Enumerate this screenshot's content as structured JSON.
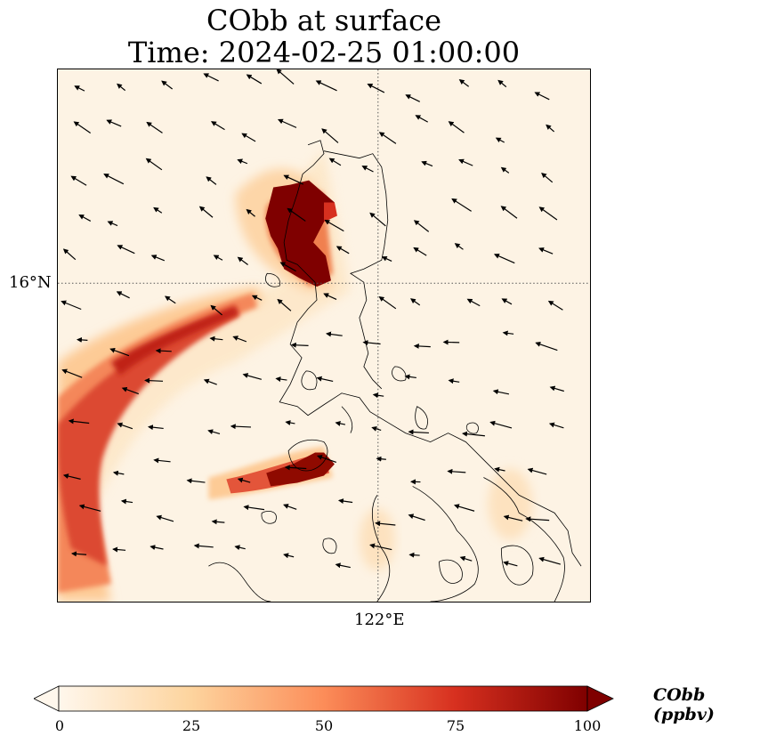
{
  "title_line1": "CObb at surface",
  "title_line2": "Time: 2024-02-25 01:00:00",
  "map": {
    "lat_gridline_label": "16°N",
    "lon_gridline_label": "122°E",
    "background_color": "#fdf3e4",
    "coastline_color": "#000000",
    "gridline_style": "dotted"
  },
  "colorbar": {
    "label": "CObb (ppbv)",
    "ticks": [
      "0",
      "25",
      "50",
      "75",
      "100"
    ],
    "range": [
      0,
      100
    ],
    "colormap": "OrRd",
    "colors": [
      "#fff7ec",
      "#fdd49e",
      "#fc8d59",
      "#d7301f",
      "#7f0000"
    ],
    "extend": "both"
  }
}
